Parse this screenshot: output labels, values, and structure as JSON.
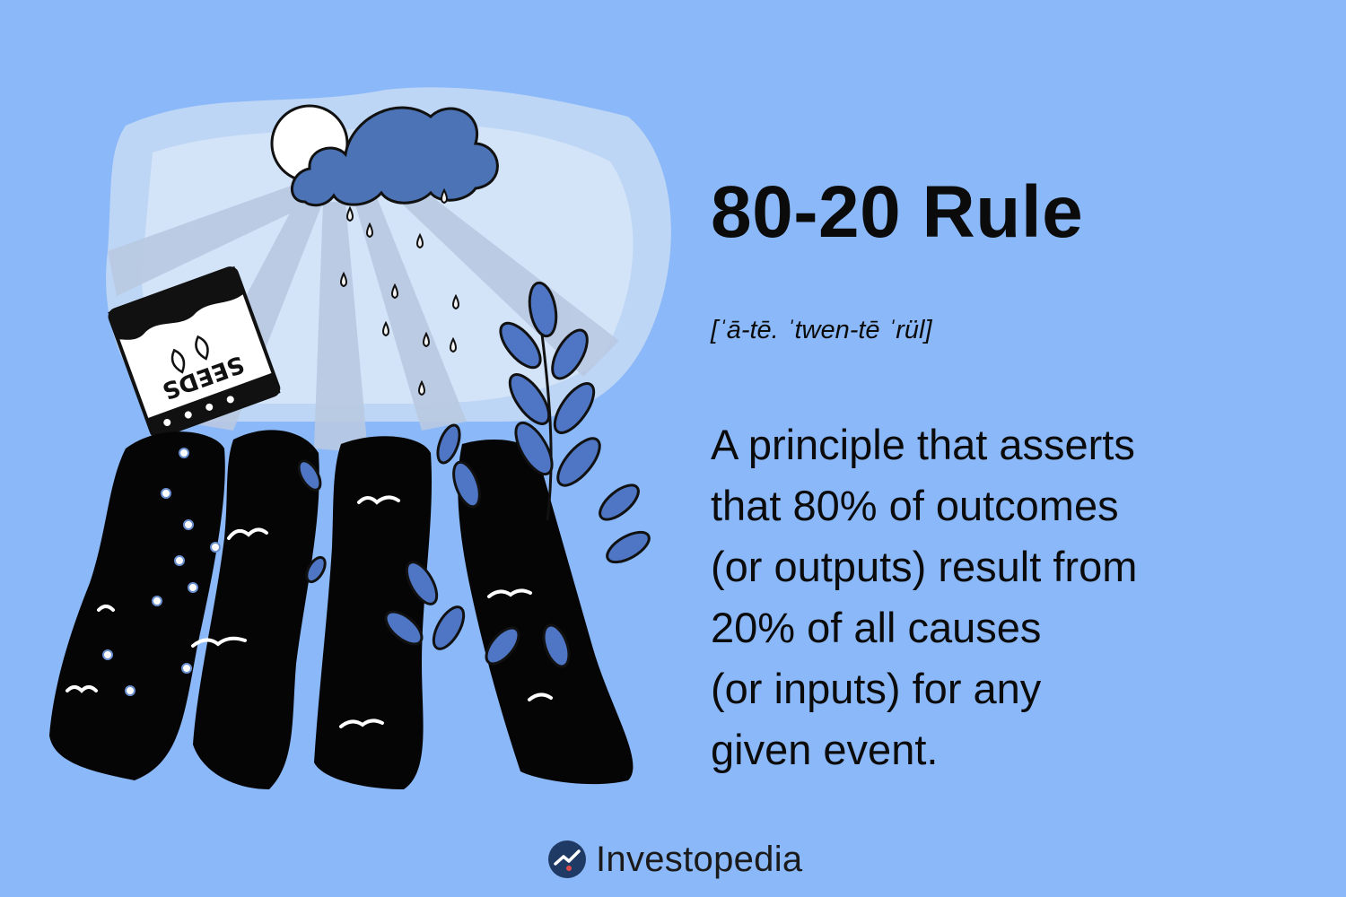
{
  "title": "80-20 Rule",
  "pronunciation": "[ˈā-tē. ˈtwen-tē ˈrül]",
  "definition_lines": [
    "A principle that asserts",
    "that 80% of outcomes",
    "(or outputs) result from",
    "20% of all causes",
    "(or inputs) for any",
    "given event."
  ],
  "illustration": {
    "seed_packet_label": "SEEDS",
    "icons": [
      "sun-icon",
      "rain-cloud-icon",
      "seed-packet-icon",
      "plant-icon",
      "soil-rows"
    ]
  },
  "brand": {
    "name": "Investopedia",
    "logo_icon": "investopedia-logo-icon"
  },
  "colors": {
    "background": "#8bb8f8",
    "cloud": "#4b73b5",
    "leaf": "#4f76c4",
    "soil": "#050505",
    "text": "#0b0b0b",
    "logo": "#1f3a64"
  }
}
